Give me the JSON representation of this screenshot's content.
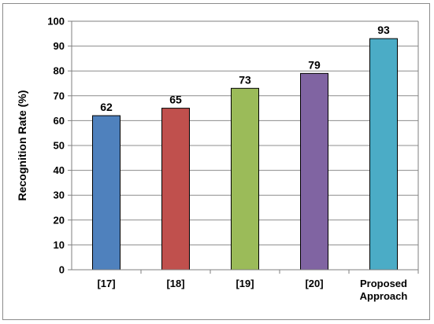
{
  "chart_data": {
    "type": "bar",
    "categories": [
      "[17]",
      "[18]",
      "[19]",
      "[20]",
      "Proposed Approach"
    ],
    "category_lines": [
      [
        "[17]"
      ],
      [
        "[18]"
      ],
      [
        "[19]"
      ],
      [
        "[20]"
      ],
      [
        "Proposed",
        "Approach"
      ]
    ],
    "values": [
      62,
      65,
      73,
      79,
      93
    ],
    "data_labels": [
      "62",
      "65",
      "73",
      "79",
      "93"
    ],
    "colors": [
      "#4f81bd",
      "#c0504d",
      "#9bbb59",
      "#8064a2",
      "#4bacc6"
    ],
    "title": "",
    "xlabel": "",
    "ylabel": "Recognition Rate (%)",
    "ylim": [
      0,
      100
    ],
    "ytick_step": 10,
    "yticks": [
      "0",
      "10",
      "20",
      "30",
      "40",
      "50",
      "60",
      "70",
      "80",
      "90",
      "100"
    ],
    "grid": true,
    "legend": "none"
  }
}
